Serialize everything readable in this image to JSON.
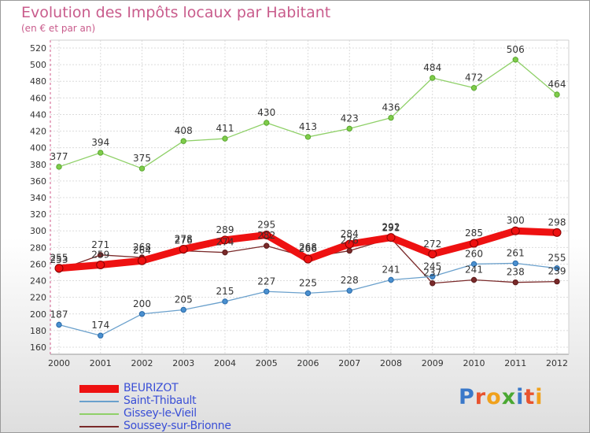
{
  "title": "Evolution des Impôts locaux par Habitant",
  "subtitle": "(en € et par an)",
  "logo_text": "Proxiti",
  "logo_colors": [
    "#3a78c9",
    "#e8532e",
    "#f0a11c",
    "#4aa832",
    "#3a78c9",
    "#e8532e",
    "#f0a11c"
  ],
  "chart_data": {
    "type": "line",
    "title": "Evolution des Impôts locaux par Habitant",
    "subtitle": "(en € et par an)",
    "x": [
      "2000",
      "2001",
      "2002",
      "2003",
      "2004",
      "2005",
      "2006",
      "2007",
      "2008",
      "2009",
      "2010",
      "2011",
      "2012"
    ],
    "ylim": [
      160,
      520
    ],
    "yticks": [
      160,
      180,
      200,
      220,
      240,
      260,
      280,
      300,
      320,
      340,
      360,
      380,
      400,
      420,
      440,
      460,
      480,
      500,
      520
    ],
    "grid": true,
    "legend": "bottom-left",
    "series": [
      {
        "name": "Soussey-sur-Brionne",
        "color": "#7a2a2a",
        "values": [
          253,
          271,
          268,
          276,
          274,
          282,
          268,
          276,
          291,
          237,
          241,
          238,
          239
        ]
      },
      {
        "name": "Saint-Thibault",
        "color": "#6aa0cc",
        "values": [
          187,
          174,
          200,
          205,
          215,
          227,
          225,
          228,
          241,
          245,
          260,
          261,
          255
        ]
      },
      {
        "name": "Gissey-le-Vieil",
        "color": "#8fd068",
        "values": [
          377,
          394,
          375,
          408,
          411,
          430,
          413,
          423,
          436,
          484,
          472,
          506,
          464
        ]
      },
      {
        "name": "BEURIZOT",
        "color": "#ee1111",
        "values": [
          255,
          259,
          264,
          278,
          289,
          295,
          266,
          284,
          292,
          272,
          285,
          300,
          298
        ]
      }
    ]
  }
}
